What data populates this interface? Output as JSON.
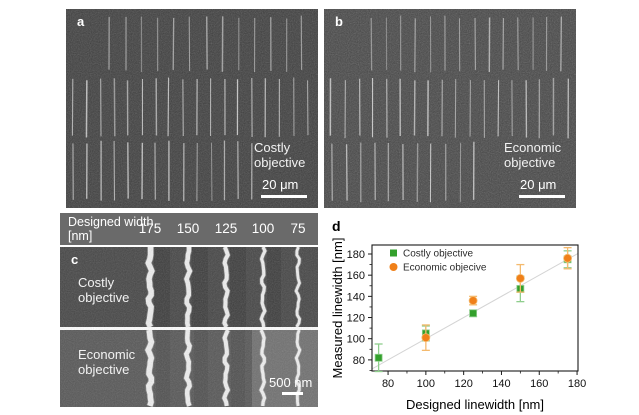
{
  "panel_a": {
    "letter": "a",
    "label": "Costly objective",
    "scale_bar_label": "20 μm"
  },
  "panel_b": {
    "letter": "b",
    "label": "Economic objective",
    "scale_bar_label": "20 μm"
  },
  "panel_c": {
    "letter": "c",
    "header_title": "Designed width [nm]",
    "designed_widths": [
      "175",
      "150",
      "125",
      "100",
      "75"
    ],
    "row_labels": [
      "Costly objective",
      "Economic objective"
    ],
    "scale_bar_label": "500 nm"
  },
  "panel_d": {
    "letter": "d"
  },
  "chart_data": {
    "type": "scatter",
    "title": "",
    "xlabel": "Designed linewidth [nm]",
    "ylabel": "Measured linewidth [nm]",
    "xlim": [
      71.5,
      180.5
    ],
    "ylim": [
      69.5,
      188.5
    ],
    "xticks": [
      80,
      100,
      120,
      140,
      160,
      180
    ],
    "yticks": [
      80,
      100,
      120,
      140,
      160,
      180
    ],
    "minor_tick_step": 10,
    "grid": false,
    "legend_position": "top-left",
    "reference_line": {
      "type": "y=x",
      "color": "#d4d4d4"
    },
    "series": [
      {
        "name": "Costly objective",
        "marker": "square",
        "color": "#33a02c",
        "errorbar_color": "#8fce8d",
        "x": [
          75,
          100,
          125,
          150,
          175
        ],
        "y": [
          82,
          105,
          124,
          147,
          175
        ],
        "yerr": [
          13,
          7,
          3,
          12,
          8
        ]
      },
      {
        "name": "Economic objecive",
        "marker": "circle",
        "color": "#f08019",
        "errorbar_color": "#f4ba6e",
        "x": [
          100,
          125,
          150,
          175
        ],
        "y": [
          101,
          136,
          157,
          176
        ],
        "yerr": [
          12,
          4,
          13,
          10
        ]
      }
    ]
  },
  "colors": {
    "sem_bg_a": "#3e3e3e",
    "sem_bg_b": "#454545",
    "sem_bg_c_top": "#454545",
    "sem_bg_c_bottom": "#565656",
    "header_gray": "#6a6a6a",
    "axis_color": "#1a1a1a"
  }
}
